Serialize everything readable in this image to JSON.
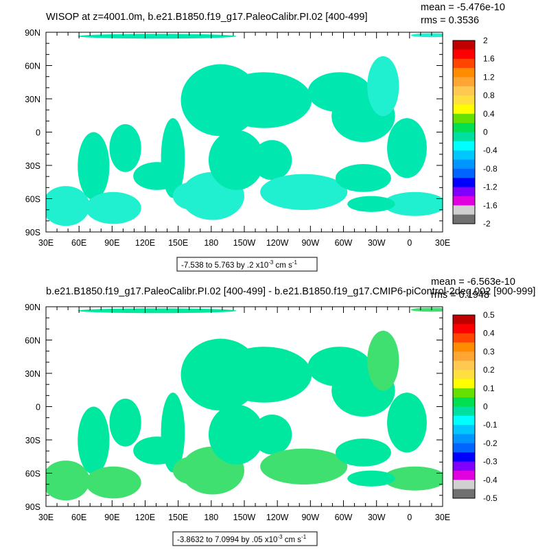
{
  "panels": [
    {
      "title": "WISOP at z=4001.0m, b.e21.B1850.f19_g17.PaleoCalibr.PI.02 [400-499]",
      "stats": {
        "mean": "mean = -5.476e-10",
        "rms": "rms = 0.3536"
      },
      "range_box": {
        "text": "-7.538 to 5.763 by .2 x10",
        "exp": "-3",
        "unit": " cm s",
        "unit_exp": "-1"
      },
      "colorbar": {
        "labels": [
          "2",
          "1.6",
          "1.2",
          "0.8",
          "0.4",
          "0",
          "-0.4",
          "-0.8",
          "-1.2",
          "-1.6",
          "-2"
        ],
        "colors": [
          "#c00000",
          "#ff0000",
          "#ff4500",
          "#ff8c00",
          "#ffa533",
          "#ffc850",
          "#ffe040",
          "#ffff00",
          "#66e000",
          "#00e050",
          "#00e0a0",
          "#00ffff",
          "#00c8ff",
          "#0096ff",
          "#0064ff",
          "#0000ff",
          "#8000ff",
          "#e000e0",
          "#d0d0d0",
          "#707070"
        ]
      },
      "field_colors": {
        "main": "#00e8b0",
        "alt": "#20f0d0"
      }
    },
    {
      "title": "b.e21.B1850.f19_g17.PaleoCalibr.PI.02 [400-499] - b.e21.B1850.f19_g17.CMIP6-piControl-2deg.002 [900-999]",
      "stats": {
        "mean": "mean = -6.563e-10",
        "rms": "rms = 0.1948"
      },
      "range_box": {
        "text": "-3.8632 to 7.0994 by .05 x10",
        "exp": "-3",
        "unit": " cm s",
        "unit_exp": "-1"
      },
      "colorbar": {
        "labels": [
          "0.5",
          "0.4",
          "0.3",
          "0.2",
          "0.1",
          "0",
          "-0.1",
          "-0.2",
          "-0.3",
          "-0.4",
          "-0.5"
        ],
        "colors": [
          "#c00000",
          "#ff0000",
          "#ff4500",
          "#ff8c00",
          "#ffa533",
          "#ffc850",
          "#ffe040",
          "#ffff00",
          "#66e000",
          "#00e050",
          "#00e0a0",
          "#00ffff",
          "#00c8ff",
          "#0096ff",
          "#0064ff",
          "#0000ff",
          "#8000ff",
          "#e000e0",
          "#d0d0d0",
          "#707070"
        ]
      },
      "field_colors": {
        "main": "#00e8a0",
        "alt": "#40e070"
      }
    }
  ],
  "axes": {
    "lat_ticks": [
      "90N",
      "60N",
      "30N",
      "0",
      "30S",
      "60S",
      "90S"
    ],
    "lon_ticks": [
      "30E",
      "60E",
      "90E",
      "120E",
      "150E",
      "180",
      "150W",
      "120W",
      "90W",
      "60W",
      "30W",
      "0",
      "30E"
    ]
  }
}
